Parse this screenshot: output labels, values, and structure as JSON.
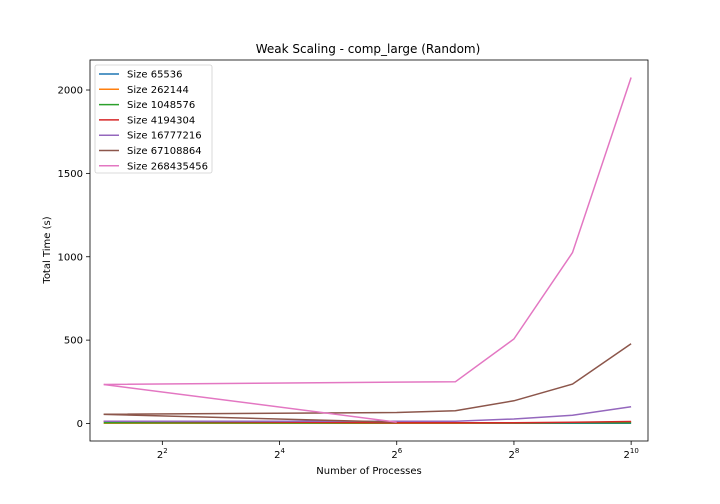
{
  "chart_data": {
    "type": "line",
    "title": "Weak Scaling - comp_large (Random)",
    "xlabel": "Number of Processes",
    "ylabel": "Total Time (s)",
    "x_scale": "log2",
    "x": [
      2,
      4,
      8,
      16,
      32,
      64,
      128,
      256,
      512,
      1024
    ],
    "xlim": [
      1.7,
      1250
    ],
    "x_ticks": [
      {
        "value": 4,
        "base": "2",
        "exp": "2"
      },
      {
        "value": 16,
        "base": "2",
        "exp": "4"
      },
      {
        "value": 64,
        "base": "2",
        "exp": "6"
      },
      {
        "value": 256,
        "base": "2",
        "exp": "8"
      },
      {
        "value": 1024,
        "base": "2",
        "exp": "10"
      }
    ],
    "ylim": [
      -105,
      2180
    ],
    "y_ticks": [
      0,
      500,
      1000,
      1500,
      2000
    ],
    "y_tick_labels": [
      "0",
      "500",
      "1000",
      "1500",
      "2000"
    ],
    "legend_position": "top-left",
    "grid": false,
    "series": [
      {
        "name": "Size 65536",
        "color": "#1f77b4",
        "values": [
          null,
          null,
          null,
          null,
          null,
          1,
          1,
          1,
          1,
          1
        ]
      },
      {
        "name": "Size 262144",
        "color": "#ff7f0e",
        "values": [
          2,
          null,
          null,
          null,
          null,
          2,
          2,
          3,
          5,
          10
        ]
      },
      {
        "name": "Size 1048576",
        "color": "#2ca02c",
        "values": [
          5,
          null,
          null,
          null,
          null,
          3,
          3,
          3,
          4,
          4
        ]
      },
      {
        "name": "Size 4194304",
        "color": "#d62728",
        "values": [
          13,
          null,
          null,
          null,
          null,
          5,
          5,
          4,
          7,
          12
        ]
      },
      {
        "name": "Size 16777216",
        "color": "#9467bd",
        "values": [
          14,
          null,
          null,
          null,
          null,
          13,
          14,
          27,
          50,
          100
        ]
      },
      {
        "name": "Size 67108864",
        "color": "#8c564b",
        "values": [
          55,
          null,
          null,
          null,
          null,
          66,
          77,
          136,
          236,
          478
        ]
      },
      {
        "name": "Size 268435456",
        "color": "#e377c2",
        "values": [
          234,
          null,
          null,
          null,
          null,
          248,
          250,
          507,
          1025,
          2075
        ]
      }
    ],
    "extra_segments_note": "",
    "size_67108864_trace2": [
      55,
      8
    ],
    "size_268435456_trace2": [
      234,
      8
    ]
  }
}
